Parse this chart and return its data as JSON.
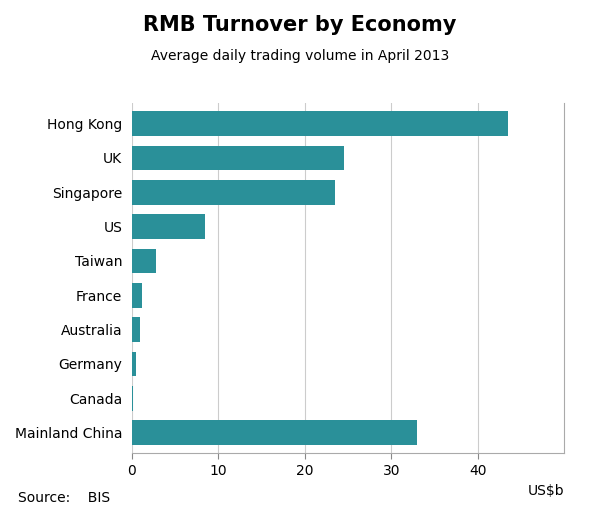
{
  "title": "RMB Turnover by Economy",
  "subtitle": "Average daily trading volume in April 2013",
  "categories": [
    "Mainland China",
    "Canada",
    "Germany",
    "Australia",
    "France",
    "Taiwan",
    "US",
    "Singapore",
    "UK",
    "Hong Kong"
  ],
  "values": [
    33.0,
    0.1,
    0.5,
    0.9,
    1.1,
    2.8,
    8.5,
    23.5,
    24.5,
    43.5
  ],
  "bar_color": "#2A9099",
  "xlabel": "US$b",
  "xlim": [
    0,
    50
  ],
  "xticks": [
    0,
    10,
    20,
    30,
    40
  ],
  "background_color": "#ffffff",
  "source_text": "Source:    BIS",
  "title_fontsize": 15,
  "subtitle_fontsize": 10,
  "tick_fontsize": 10,
  "xlabel_fontsize": 10,
  "source_fontsize": 10,
  "bar_height": 0.72
}
